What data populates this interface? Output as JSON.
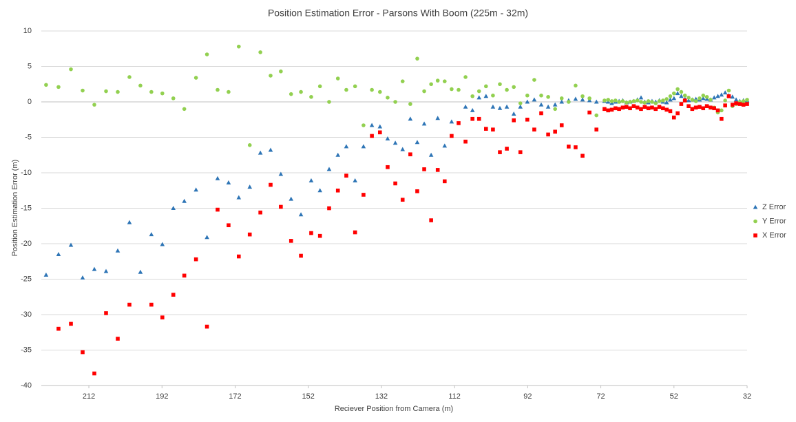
{
  "chart_data": {
    "type": "scatter",
    "title": "Position Estimation Error - Parsons With Boom (225m - 32m)",
    "x_label": "Reciever Position from Camera (m)",
    "y_label": "Position Estimation Error (m)",
    "xlim": [
      225,
      32
    ],
    "xticks": [
      212,
      192,
      172,
      152,
      132,
      112,
      92,
      72,
      52,
      32
    ],
    "ylim": [
      -40,
      10
    ],
    "yticks": [
      -40,
      -35,
      -30,
      -25,
      -20,
      -15,
      -10,
      -5,
      0,
      5,
      10
    ],
    "grid": true,
    "legend": "right",
    "series": [
      {
        "name": "Z Error",
        "color": "#2e75b6",
        "marker": "triangle",
        "x": [
          223.7,
          220.3,
          216.9,
          213.7,
          210.5,
          207.3,
          204.1,
          200.9,
          197.9,
          194.9,
          191.9,
          188.9,
          185.9,
          182.7,
          179.7,
          176.8,
          173.8,
          171.0,
          168.0,
          165.1,
          162.3,
          159.5,
          156.7,
          154.0,
          151.2,
          148.8,
          146.3,
          143.9,
          141.6,
          139.2,
          136.9,
          134.6,
          132.4,
          130.3,
          128.2,
          126.2,
          124.1,
          122.2,
          120.3,
          118.4,
          116.6,
          114.7,
          112.8,
          109.0,
          107.1,
          105.3,
          103.4,
          101.5,
          99.6,
          97.7,
          95.8,
          94.0,
          92.1,
          90.2,
          88.3,
          86.4,
          84.5,
          82.7,
          80.8,
          78.9,
          77.0,
          75.1,
          73.2,
          71,
          70,
          69,
          68,
          67,
          66,
          65,
          64,
          63,
          62,
          61,
          60,
          59,
          58,
          57,
          56,
          55,
          54,
          53,
          52,
          51,
          50,
          49,
          48,
          47,
          46,
          45,
          44,
          43,
          42,
          41,
          40,
          39,
          38,
          37,
          36,
          35,
          34,
          33,
          32
        ],
        "values": [
          -24.4,
          -21.5,
          -20.2,
          -24.8,
          -23.6,
          -23.9,
          -21.0,
          -17.0,
          -24.0,
          -18.7,
          -20.1,
          -15.0,
          -14.0,
          -12.4,
          -19.1,
          -10.8,
          -11.4,
          -13.5,
          -12.0,
          -7.2,
          -6.8,
          -10.2,
          -13.7,
          -15.9,
          -11.1,
          -12.5,
          -9.5,
          -7.5,
          -6.3,
          -11.1,
          -6.3,
          -3.3,
          -3.5,
          -5.2,
          -5.8,
          -6.7,
          -2.4,
          -5.7,
          -3.1,
          -7.5,
          -2.3,
          -6.2,
          -2.8,
          -0.7,
          -1.2,
          0.6,
          0.8,
          -0.7,
          -0.9,
          -0.7,
          -1.7,
          -0.7,
          0.0,
          0.3,
          -0.4,
          -0.7,
          -0.4,
          0.0,
          0.2,
          0.4,
          0.3,
          0.2,
          0.0,
          0.1,
          0.0,
          -0.2,
          0.0,
          0.1,
          0.2,
          -0.1,
          0.0,
          0.1,
          0.3,
          0.6,
          0.0,
          -0.1,
          0.1,
          0.0,
          0.2,
          0.0,
          -0.1,
          0.3,
          0.5,
          1.2,
          0.8,
          0.4,
          0.2,
          0.3,
          0.4,
          0.3,
          0.5,
          0.4,
          0.3,
          0.6,
          0.8,
          1.0,
          1.3,
          0.9,
          0.7,
          0.3,
          0.1,
          0.2,
          0.2
        ]
      },
      {
        "name": "Y Error",
        "color": "#92d050",
        "marker": "circle",
        "x": [
          223.7,
          220.3,
          216.9,
          213.7,
          210.5,
          207.3,
          204.1,
          200.9,
          197.9,
          194.9,
          191.9,
          188.9,
          185.9,
          182.7,
          179.7,
          176.8,
          173.8,
          171.0,
          168.0,
          165.1,
          162.3,
          159.5,
          156.7,
          154.0,
          151.2,
          148.8,
          146.3,
          143.9,
          141.6,
          139.2,
          136.9,
          134.6,
          132.4,
          130.3,
          128.2,
          126.2,
          124.1,
          122.2,
          120.3,
          118.4,
          116.6,
          114.7,
          112.8,
          110.9,
          109.0,
          107.1,
          105.3,
          103.4,
          101.5,
          99.6,
          97.7,
          95.8,
          94.0,
          92.1,
          90.2,
          88.3,
          86.4,
          84.5,
          82.7,
          80.8,
          78.9,
          77.0,
          75.1,
          73.2,
          71,
          70,
          69,
          68,
          67,
          66,
          65,
          64,
          63,
          62,
          61,
          60,
          59,
          58,
          57,
          56,
          55,
          54,
          53,
          52,
          51,
          50,
          49,
          48,
          47,
          46,
          45,
          44,
          43,
          42,
          41,
          40,
          39,
          38,
          37,
          36,
          35,
          34,
          33,
          32
        ],
        "values": [
          2.4,
          2.1,
          4.6,
          1.6,
          -0.4,
          1.5,
          1.4,
          3.5,
          2.3,
          1.4,
          1.2,
          0.5,
          -1.0,
          3.4,
          6.7,
          1.7,
          1.4,
          7.8,
          -6.1,
          7.0,
          3.7,
          4.3,
          1.1,
          1.4,
          0.7,
          2.2,
          0.0,
          3.3,
          1.7,
          2.2,
          -3.3,
          1.7,
          1.4,
          0.6,
          0.0,
          2.9,
          -0.3,
          6.1,
          1.5,
          2.5,
          3.0,
          2.9,
          1.8,
          1.7,
          3.5,
          0.8,
          1.5,
          2.2,
          0.9,
          2.5,
          1.7,
          2.1,
          -0.2,
          0.9,
          3.1,
          0.9,
          0.7,
          -1.0,
          0.5,
          0.0,
          2.3,
          0.8,
          0.5,
          -1.9,
          0.2,
          0.3,
          0.1,
          0.2,
          0.0,
          0.1,
          -0.1,
          0.0,
          0.1,
          0.2,
          0.0,
          -0.1,
          0.1,
          0.0,
          -0.2,
          0.1,
          0.2,
          0.4,
          0.8,
          1.2,
          1.8,
          1.4,
          0.9,
          0.6,
          0.3,
          0.1,
          0.5,
          0.9,
          0.7,
          0.3,
          -0.8,
          -1.5,
          -1.2,
          0.2,
          1.6,
          -0.6,
          -0.3,
          0.0,
          0.1,
          0.3
        ]
      },
      {
        "name": "X Error",
        "color": "#ff0000",
        "marker": "square",
        "x": [
          220.3,
          216.9,
          213.7,
          210.5,
          207.3,
          204.1,
          200.9,
          194.9,
          191.9,
          188.9,
          185.9,
          182.7,
          179.7,
          176.8,
          173.8,
          171.0,
          168.0,
          165.1,
          162.3,
          159.5,
          156.7,
          154.0,
          151.2,
          148.8,
          146.3,
          143.9,
          141.6,
          139.2,
          136.9,
          134.6,
          132.4,
          130.3,
          128.2,
          126.2,
          124.1,
          122.2,
          120.3,
          118.4,
          116.6,
          114.7,
          112.8,
          110.9,
          109.0,
          107.1,
          105.3,
          103.4,
          101.5,
          99.6,
          97.7,
          95.8,
          94.0,
          92.1,
          90.2,
          88.3,
          86.4,
          84.5,
          82.7,
          80.8,
          78.9,
          77.0,
          75.1,
          73.2,
          71,
          70,
          69,
          68,
          67,
          66,
          65,
          64,
          63,
          62,
          61,
          60,
          59,
          58,
          57,
          56,
          55,
          54,
          53,
          52,
          51,
          50,
          49,
          48,
          47,
          46,
          45,
          44,
          43,
          42,
          41,
          40,
          39,
          38,
          37,
          36,
          35,
          34,
          33,
          32
        ],
        "values": [
          -32.0,
          -31.3,
          -35.3,
          -38.3,
          -29.8,
          -33.4,
          -28.6,
          -28.6,
          -30.4,
          -27.2,
          -24.5,
          -22.2,
          -31.7,
          -15.2,
          -17.4,
          -21.8,
          -18.7,
          -15.6,
          -11.7,
          -14.8,
          -19.6,
          -21.7,
          -18.5,
          -18.9,
          -15.0,
          -12.5,
          -10.4,
          -18.4,
          -13.1,
          -4.8,
          -4.3,
          -9.2,
          -11.5,
          -13.8,
          -7.4,
          -12.6,
          -9.5,
          -16.7,
          -9.6,
          -11.2,
          -4.8,
          -3.0,
          -5.6,
          -2.4,
          -2.4,
          -3.8,
          -3.9,
          -7.1,
          -6.6,
          -2.6,
          -7.1,
          -2.5,
          -3.9,
          -1.6,
          -4.6,
          -4.2,
          -3.3,
          -6.3,
          -6.4,
          -7.6,
          -1.5,
          -3.9,
          -1.0,
          -1.2,
          -1.1,
          -0.9,
          -1.0,
          -0.8,
          -0.7,
          -0.9,
          -0.6,
          -0.8,
          -1.0,
          -0.7,
          -0.9,
          -0.8,
          -1.0,
          -0.7,
          -0.9,
          -1.1,
          -1.3,
          -2.2,
          -1.6,
          -0.3,
          0.2,
          -0.6,
          -1.0,
          -0.8,
          -0.7,
          -0.9,
          -0.6,
          -0.8,
          -0.9,
          -1.2,
          -2.4,
          -0.5,
          0.8,
          -0.4,
          -0.2,
          -0.3,
          -0.4,
          -0.3
        ]
      }
    ]
  }
}
